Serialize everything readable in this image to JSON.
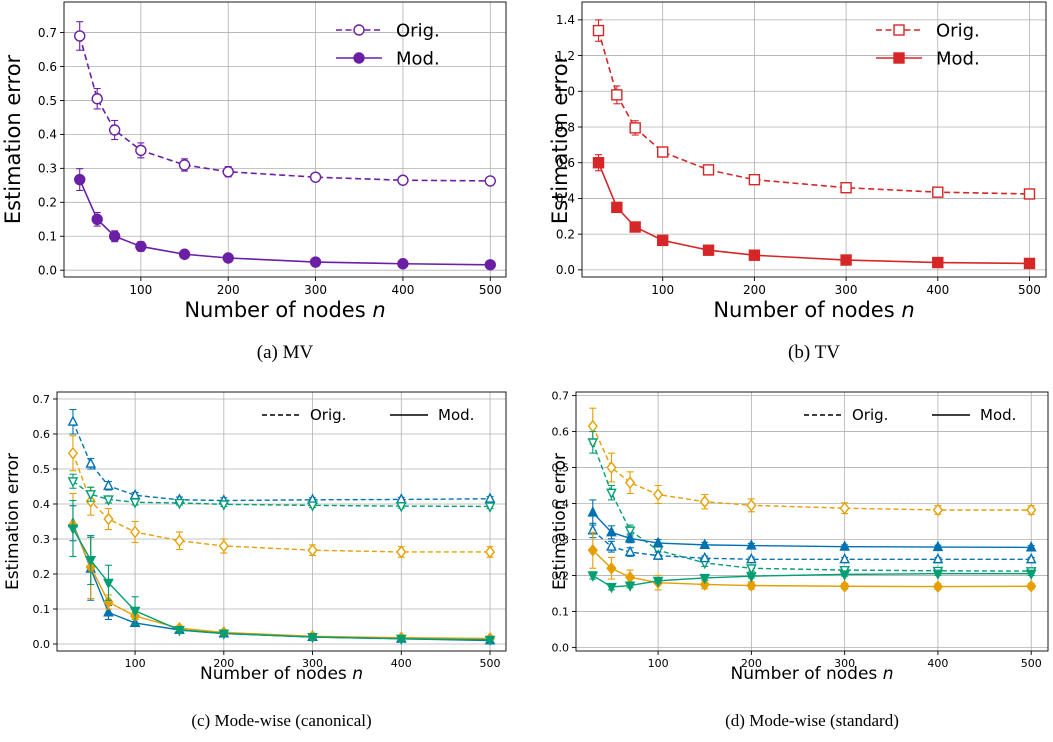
{
  "colors": {
    "purple": "#6a1fa5",
    "red": "#d62728",
    "blue": "#0072b2",
    "orange": "#e69f00",
    "green": "#009e73"
  },
  "chart_data": [
    {
      "type": "line",
      "caption": "(a) MV",
      "xlabel": "Number of nodes",
      "xlabel_var": "n",
      "ylabel": "Estimation error",
      "xlim": [
        12,
        518
      ],
      "ylim": [
        -0.02,
        0.79
      ],
      "xticks": [
        100,
        200,
        300,
        400,
        500
      ],
      "yticks": [
        0.0,
        0.1,
        0.2,
        0.3,
        0.4,
        0.5,
        0.6,
        0.7
      ],
      "grid": true,
      "legend": {
        "location": "top-right",
        "style": "marker"
      },
      "x": [
        30,
        50,
        70,
        100,
        150,
        200,
        300,
        400,
        500
      ],
      "series": [
        {
          "name": "Orig.",
          "color": "#6a1fa5",
          "dash": true,
          "marker": "circle",
          "filled": false,
          "values": [
            0.69,
            0.505,
            0.413,
            0.353,
            0.31,
            0.29,
            0.274,
            0.265,
            0.263
          ],
          "errors": [
            0.042,
            0.03,
            0.028,
            0.022,
            0.018,
            0.015,
            0.01,
            0.01,
            0.008
          ]
        },
        {
          "name": "Mod.",
          "color": "#6a1fa5",
          "dash": false,
          "marker": "circle",
          "filled": true,
          "values": [
            0.267,
            0.15,
            0.1,
            0.07,
            0.047,
            0.036,
            0.024,
            0.019,
            0.016
          ],
          "errors": [
            0.032,
            0.02,
            0.016,
            0.014,
            0.008,
            0.006,
            0.004,
            0.004,
            0.004
          ]
        }
      ]
    },
    {
      "type": "line",
      "caption": "(b) TV",
      "xlabel": "Number of nodes",
      "xlabel_var": "n",
      "ylabel": "Estimation error",
      "xlim": [
        12,
        518
      ],
      "ylim": [
        -0.04,
        1.5
      ],
      "xticks": [
        100,
        200,
        300,
        400,
        500
      ],
      "yticks": [
        0.0,
        0.2,
        0.4,
        0.6,
        0.8,
        1.0,
        1.2,
        1.4
      ],
      "grid": true,
      "legend": {
        "location": "top-right",
        "style": "marker"
      },
      "x": [
        30,
        50,
        70,
        100,
        150,
        200,
        300,
        400,
        500
      ],
      "series": [
        {
          "name": "Orig.",
          "color": "#d62728",
          "dash": true,
          "marker": "square",
          "filled": false,
          "values": [
            1.34,
            0.98,
            0.795,
            0.66,
            0.56,
            0.505,
            0.46,
            0.435,
            0.425
          ],
          "errors": [
            0.06,
            0.05,
            0.04,
            0.025,
            0.02,
            0.018,
            0.015,
            0.015,
            0.012
          ]
        },
        {
          "name": "Mod.",
          "color": "#d62728",
          "dash": false,
          "marker": "square",
          "filled": true,
          "values": [
            0.6,
            0.35,
            0.24,
            0.165,
            0.11,
            0.082,
            0.055,
            0.041,
            0.036
          ],
          "errors": [
            0.045,
            0.02,
            0.016,
            0.012,
            0.008,
            0.006,
            0.005,
            0.004,
            0.004
          ]
        }
      ]
    },
    {
      "type": "line",
      "caption": "(c) Mode-wise (canonical)",
      "xlabel": "Number of nodes",
      "xlabel_var": "n",
      "ylabel": "Estimation error",
      "xlim": [
        12,
        518
      ],
      "ylim": [
        -0.02,
        0.72
      ],
      "xticks": [
        100,
        200,
        300,
        400,
        500
      ],
      "yticks": [
        0.0,
        0.1,
        0.2,
        0.3,
        0.4,
        0.5,
        0.6,
        0.7
      ],
      "grid": true,
      "legend": {
        "location": "top-right",
        "style": "line"
      },
      "legend_entries": [
        "Orig.",
        "Mod."
      ],
      "x": [
        30,
        50,
        70,
        100,
        150,
        200,
        300,
        400,
        500
      ],
      "series": [
        {
          "color": "#0072b2",
          "dash": true,
          "marker": "triangle-up",
          "filled": false,
          "values": [
            0.635,
            0.515,
            0.452,
            0.425,
            0.412,
            0.41,
            0.412,
            0.413,
            0.415
          ],
          "errors": [
            0.035,
            0.015,
            0.012,
            0.008,
            0.008,
            0.008,
            0.006,
            0.006,
            0.006
          ]
        },
        {
          "color": "#e69f00",
          "dash": true,
          "marker": "diamond",
          "filled": false,
          "values": [
            0.545,
            0.408,
            0.357,
            0.32,
            0.295,
            0.28,
            0.268,
            0.263,
            0.263
          ],
          "errors": [
            0.05,
            0.04,
            0.03,
            0.03,
            0.025,
            0.02,
            0.015,
            0.015,
            0.015
          ]
        },
        {
          "color": "#009e73",
          "dash": true,
          "marker": "triangle-down",
          "filled": false,
          "values": [
            0.465,
            0.428,
            0.413,
            0.405,
            0.403,
            0.399,
            0.396,
            0.394,
            0.393
          ],
          "errors": [
            0.02,
            0.02,
            0.01,
            0.008,
            0.006,
            0.006,
            0.006,
            0.006,
            0.006
          ]
        },
        {
          "color": "#0072b2",
          "dash": false,
          "marker": "triangle-up",
          "filled": true,
          "values": [
            0.345,
            0.215,
            0.09,
            0.06,
            0.04,
            0.03,
            0.02,
            0.015,
            0.01
          ],
          "errors": [
            0.05,
            0.09,
            0.02,
            0.01,
            0.006,
            0.005,
            0.004,
            0.004,
            0.004
          ]
        },
        {
          "color": "#e69f00",
          "dash": false,
          "marker": "diamond",
          "filled": true,
          "values": [
            0.34,
            0.22,
            0.12,
            0.08,
            0.045,
            0.033,
            0.022,
            0.018,
            0.016
          ],
          "errors": [
            0.09,
            0.09,
            0.02,
            0.01,
            0.006,
            0.005,
            0.004,
            0.004,
            0.004
          ]
        },
        {
          "color": "#009e73",
          "dash": false,
          "marker": "triangle-down",
          "filled": true,
          "values": [
            0.33,
            0.24,
            0.175,
            0.095,
            0.04,
            0.03,
            0.02,
            0.015,
            0.012
          ],
          "errors": [
            0.08,
            0.07,
            0.05,
            0.04,
            0.01,
            0.006,
            0.004,
            0.004,
            0.004
          ]
        }
      ]
    },
    {
      "type": "line",
      "caption": "(d) Mode-wise (standard)",
      "xlabel": "Number of nodes",
      "xlabel_var": "n",
      "ylabel": "Estimation error",
      "xlim": [
        12,
        518
      ],
      "ylim": [
        -0.01,
        0.71
      ],
      "xticks": [
        100,
        200,
        300,
        400,
        500
      ],
      "yticks": [
        0.0,
        0.1,
        0.2,
        0.3,
        0.4,
        0.5,
        0.6,
        0.7
      ],
      "grid": true,
      "legend": {
        "location": "top-right",
        "style": "line"
      },
      "legend_entries": [
        "Orig.",
        "Mod."
      ],
      "x": [
        30,
        50,
        70,
        100,
        150,
        200,
        300,
        400,
        500
      ],
      "series": [
        {
          "color": "#e69f00",
          "dash": true,
          "marker": "diamond",
          "filled": false,
          "values": [
            0.615,
            0.5,
            0.458,
            0.425,
            0.405,
            0.395,
            0.387,
            0.382,
            0.382
          ],
          "errors": [
            0.05,
            0.04,
            0.03,
            0.025,
            0.02,
            0.018,
            0.015,
            0.012,
            0.012
          ]
        },
        {
          "color": "#009e73",
          "dash": true,
          "marker": "triangle-down",
          "filled": false,
          "values": [
            0.57,
            0.43,
            0.325,
            0.27,
            0.235,
            0.22,
            0.215,
            0.213,
            0.212
          ],
          "errors": [
            0.03,
            0.02,
            0.015,
            0.012,
            0.01,
            0.008,
            0.006,
            0.006,
            0.006
          ]
        },
        {
          "color": "#0072b2",
          "dash": true,
          "marker": "triangle-up",
          "filled": false,
          "values": [
            0.325,
            0.28,
            0.265,
            0.255,
            0.248,
            0.245,
            0.245,
            0.245,
            0.245
          ],
          "errors": [
            0.02,
            0.015,
            0.012,
            0.01,
            0.006,
            0.006,
            0.005,
            0.005,
            0.005
          ]
        },
        {
          "color": "#0072b2",
          "dash": false,
          "marker": "triangle-up",
          "filled": true,
          "values": [
            0.375,
            0.32,
            0.303,
            0.29,
            0.285,
            0.283,
            0.28,
            0.279,
            0.278
          ],
          "errors": [
            0.035,
            0.018,
            0.012,
            0.01,
            0.007,
            0.006,
            0.005,
            0.005,
            0.005
          ]
        },
        {
          "color": "#e69f00",
          "dash": false,
          "marker": "diamond",
          "filled": true,
          "values": [
            0.27,
            0.22,
            0.195,
            0.18,
            0.175,
            0.172,
            0.17,
            0.169,
            0.17
          ],
          "errors": [
            0.05,
            0.03,
            0.02,
            0.02,
            0.012,
            0.01,
            0.008,
            0.008,
            0.008
          ]
        },
        {
          "color": "#009e73",
          "dash": false,
          "marker": "triangle-down",
          "filled": true,
          "values": [
            0.2,
            0.168,
            0.172,
            0.185,
            0.193,
            0.198,
            0.203,
            0.205,
            0.205
          ],
          "errors": [
            0.01,
            0.008,
            0.006,
            0.006,
            0.006,
            0.005,
            0.005,
            0.005,
            0.005
          ]
        }
      ]
    }
  ]
}
